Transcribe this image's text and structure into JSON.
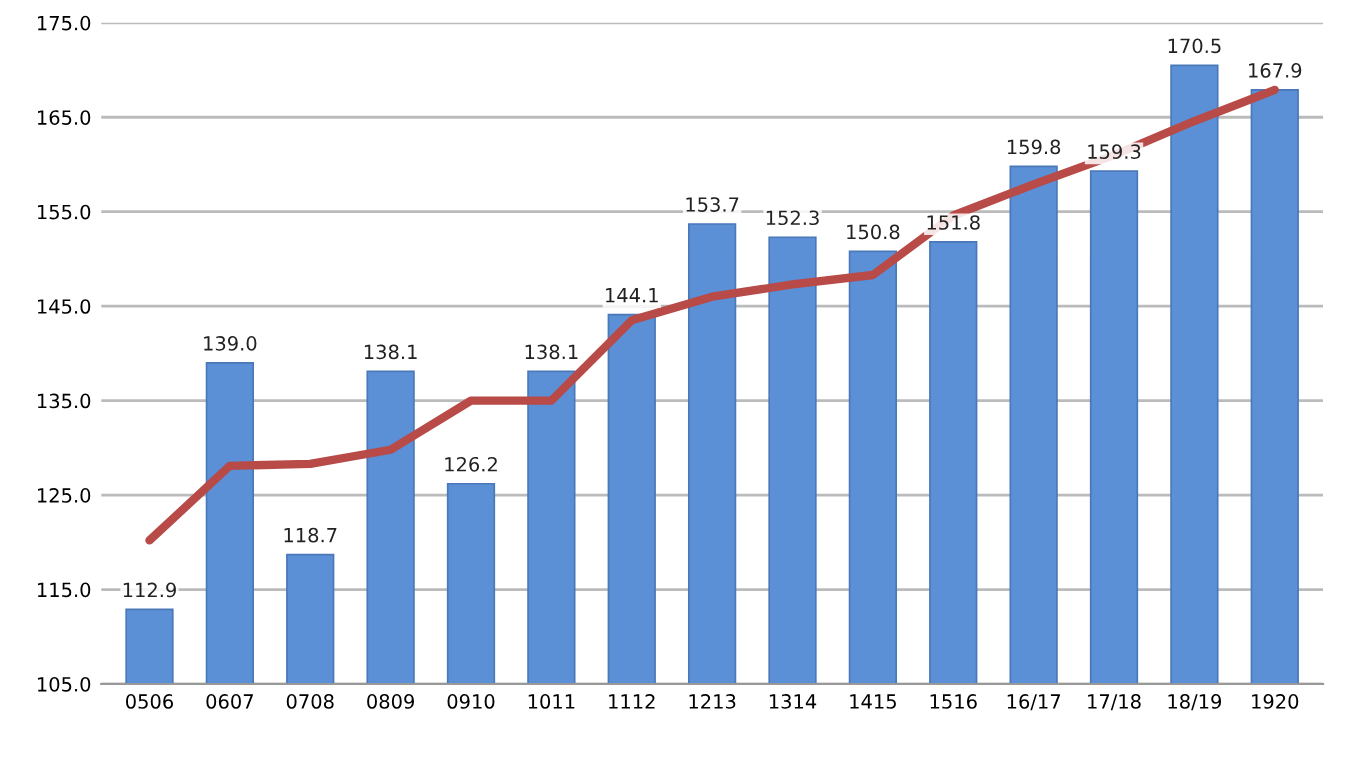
{
  "chart_data": {
    "type": "bar",
    "categories": [
      "0506",
      "0607",
      "0708",
      "0809",
      "0910",
      "1011",
      "1112",
      "1213",
      "1314",
      "1415",
      "1516",
      "16/17",
      "17/18",
      "18/19",
      "1920"
    ],
    "series": [
      {
        "color": "#5b8fd6",
        "values": [
          112.9,
          139.0,
          118.7,
          138.1,
          126.2,
          138.1,
          144.1,
          153.7,
          152.3,
          150.8,
          151.8,
          159.8,
          159.3,
          170.5,
          167.9
        ],
        "value_labels": [
          "112.9",
          "139.0",
          "118.7",
          "138.1",
          "126.2",
          "138.1",
          "144.1",
          "153.7",
          "152.3",
          "150.8",
          "151.8",
          "159.8",
          "159.3",
          "170.5",
          "167.9"
        ]
      },
      {
        "type": "line",
        "color": "#b84a48",
        "values": [
          120.2,
          128.1,
          128.3,
          129.8,
          135.0,
          135.0,
          143.5,
          146.0,
          147.3,
          148.3,
          154.6,
          157.9,
          161.0,
          164.6,
          167.9
        ]
      }
    ],
    "ylim": [
      105,
      175
    ],
    "yticks": [
      {
        "value": 105,
        "label": "105.0"
      },
      {
        "value": 115,
        "label": "115.0"
      },
      {
        "value": 125,
        "label": "125.0"
      },
      {
        "value": 135,
        "label": "135.0"
      },
      {
        "value": 145,
        "label": "145.0"
      },
      {
        "value": 155,
        "label": "155.0"
      },
      {
        "value": 165,
        "label": "165.0"
      },
      {
        "value": 175,
        "label": "175.0"
      }
    ],
    "grid": "y",
    "legend": false,
    "marker": "none",
    "line_style": "solid"
  }
}
